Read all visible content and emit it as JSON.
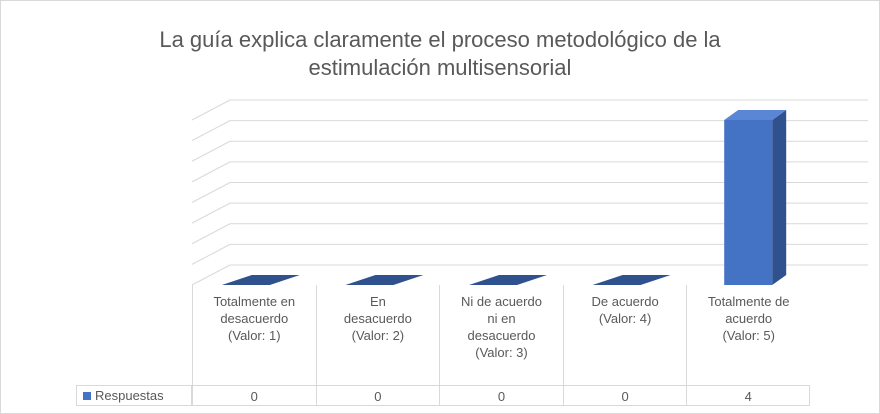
{
  "chart_data": {
    "type": "bar3d",
    "title": "La guía explica claramente el proceso metodológico de la estimulación multisensorial",
    "categories": [
      "Totalmente en desacuerdo (Valor: 1)",
      "En desacuerdo (Valor: 2)",
      "Ni de acuerdo ni en desacuerdo (Valor: 3)",
      "De acuerdo (Valor: 4)",
      "Totalmente de acuerdo (Valor: 5)"
    ],
    "series": [
      {
        "name": "Respuestas",
        "color": "#4472c4",
        "values": [
          0,
          0,
          0,
          0,
          4
        ]
      }
    ],
    "ylim": [
      0,
      4
    ],
    "yticks": [
      0,
      0.5,
      1,
      1.5,
      2,
      2.5,
      3,
      3.5,
      4
    ],
    "grid": true,
    "data_table": true
  }
}
